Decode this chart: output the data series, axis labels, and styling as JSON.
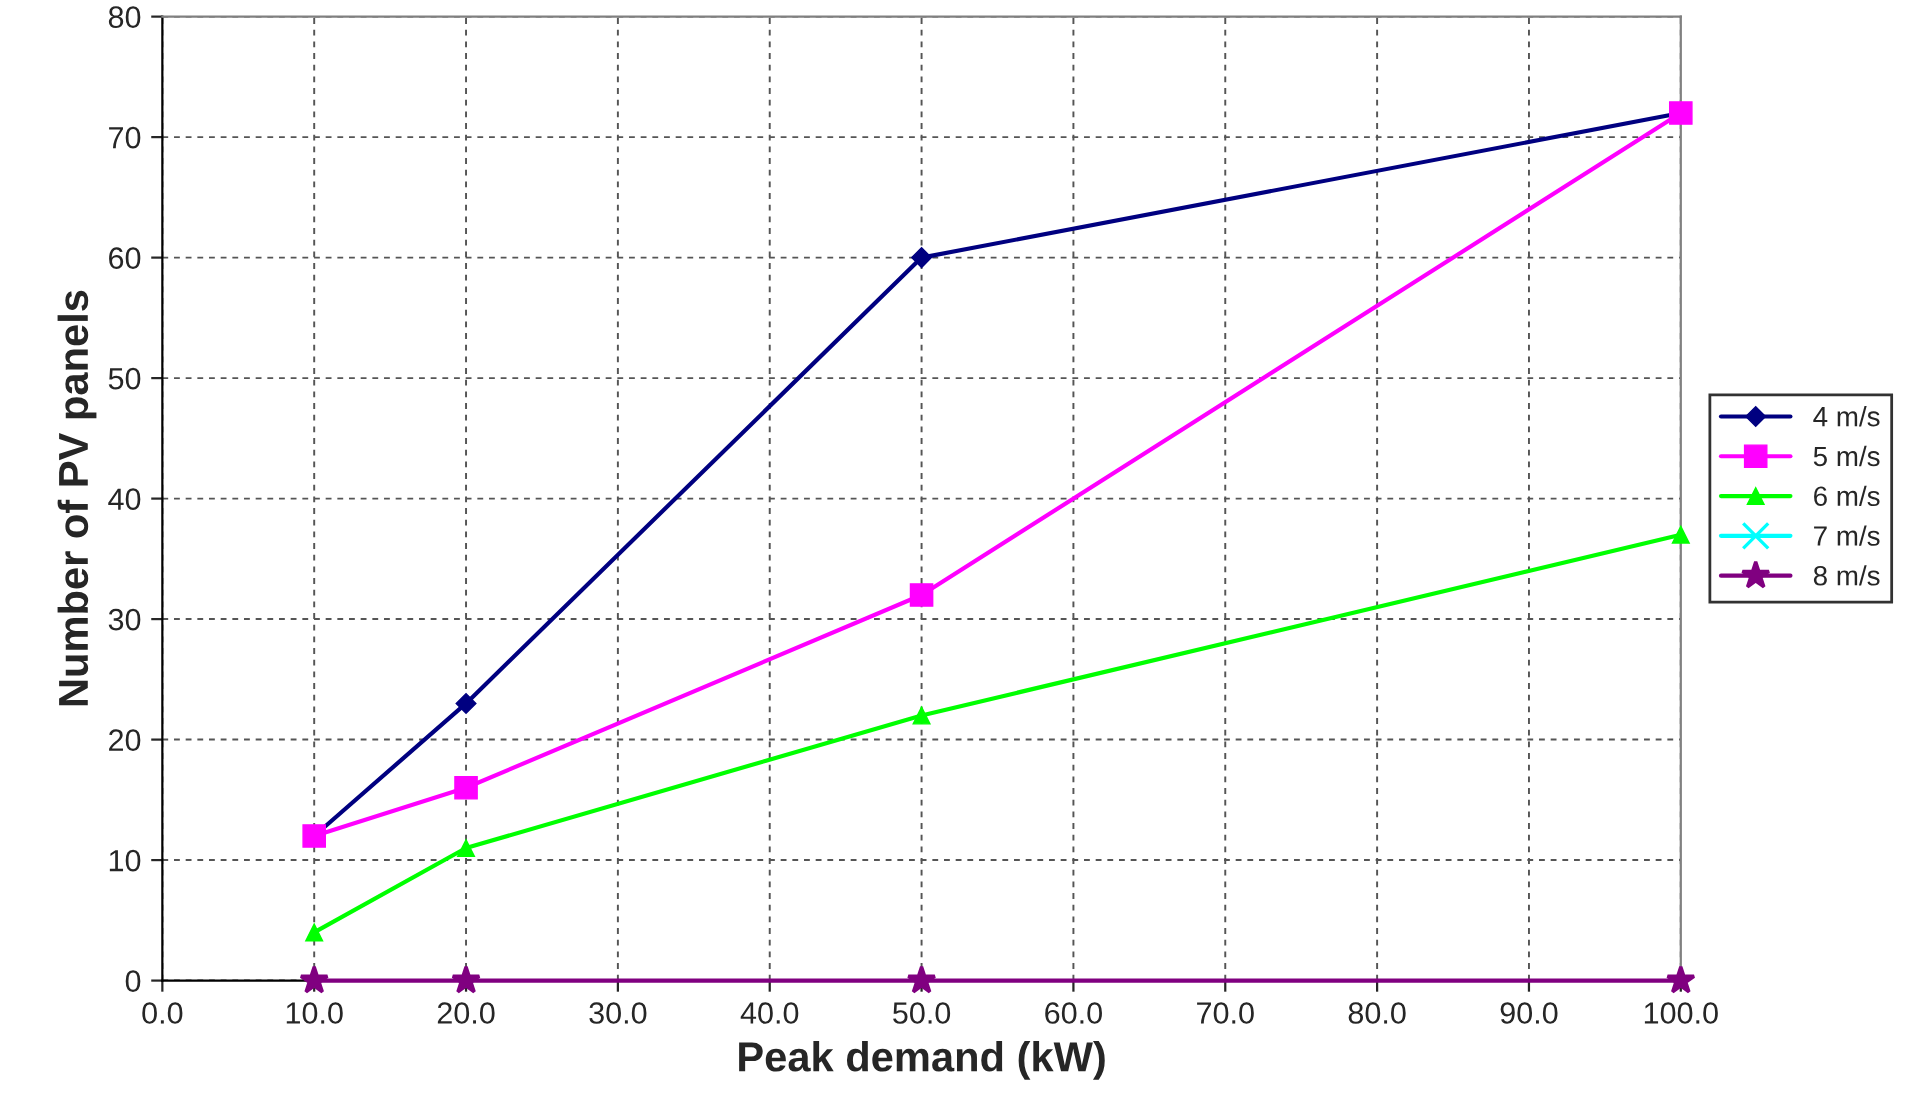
{
  "chart_data": {
    "type": "line",
    "xlabel": "Peak demand (kW)",
    "ylabel": "Number of PV panels",
    "x": [
      10,
      20,
      50,
      100
    ],
    "series": [
      {
        "name": "4 m/s",
        "color": "#000080",
        "marker": "diamond",
        "values": [
          12,
          23,
          60,
          72
        ]
      },
      {
        "name": "5 m/s",
        "color": "#ff00ff",
        "marker": "square",
        "values": [
          12,
          16,
          32,
          72
        ]
      },
      {
        "name": "6 m/s",
        "color": "#00ff00",
        "marker": "triangle",
        "values": [
          4,
          11,
          22,
          37
        ]
      },
      {
        "name": "7 m/s",
        "color": "#00ffff",
        "marker": "cross",
        "values": [
          null,
          null,
          null,
          null
        ]
      },
      {
        "name": "8 m/s",
        "color": "#800080",
        "marker": "star",
        "values": [
          0,
          0,
          0,
          0
        ]
      }
    ],
    "xlim": [
      0,
      100
    ],
    "xticks": [
      {
        "value": 0,
        "label": "0.0"
      },
      {
        "value": 10,
        "label": "10.0"
      },
      {
        "value": 20,
        "label": "20.0"
      },
      {
        "value": 30,
        "label": "30.0"
      },
      {
        "value": 40,
        "label": "40.0"
      },
      {
        "value": 50,
        "label": "50.0"
      },
      {
        "value": 60,
        "label": "60.0"
      },
      {
        "value": 70,
        "label": "70.0"
      },
      {
        "value": 80,
        "label": "80.0"
      },
      {
        "value": 90,
        "label": "90.0"
      },
      {
        "value": 100,
        "label": "100.0"
      }
    ],
    "ylim": [
      0,
      80
    ],
    "yticks": [
      0,
      10,
      20,
      30,
      40,
      50,
      60,
      70,
      80
    ],
    "grid": true,
    "legend": "right",
    "line_style": "solid"
  }
}
